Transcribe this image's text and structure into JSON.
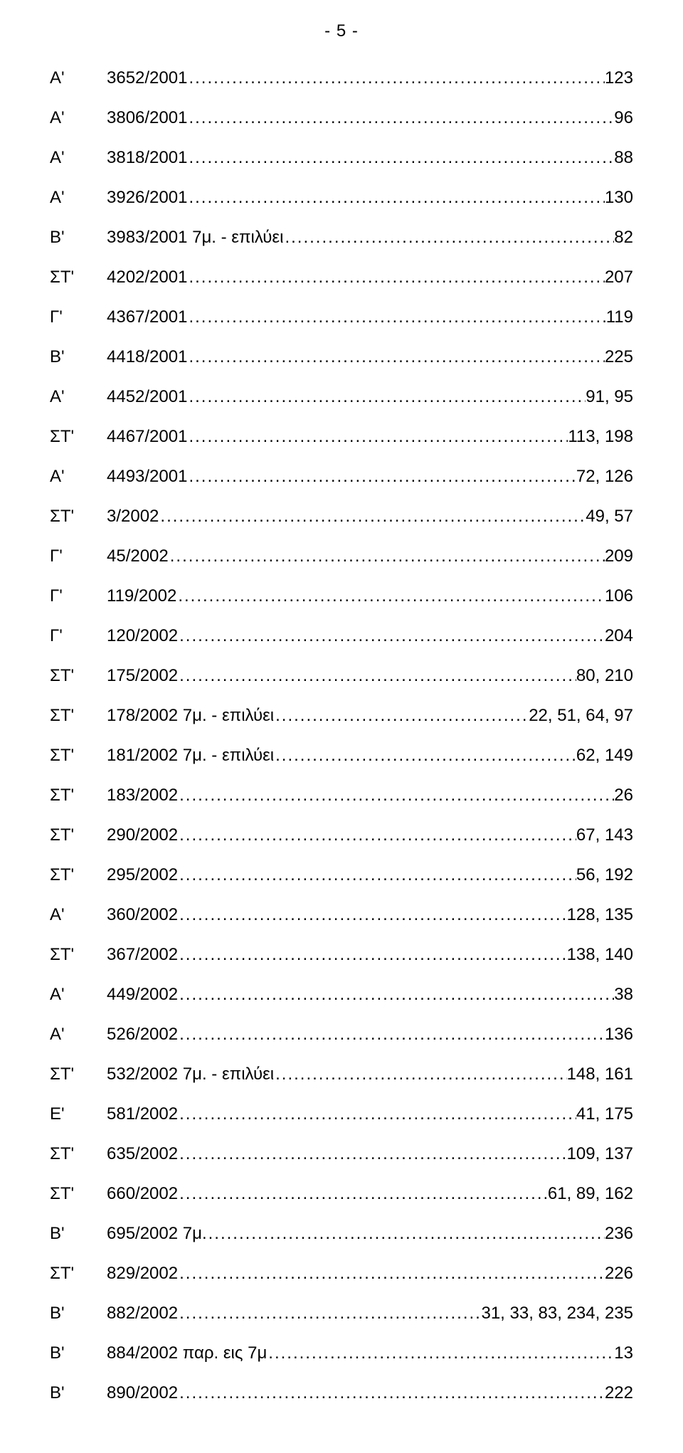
{
  "page_number": "- 5 -",
  "entries": [
    {
      "prefix": "Α'",
      "label": "3652/2001",
      "value": "123"
    },
    {
      "prefix": "Α'",
      "label": "3806/2001",
      "value": "96"
    },
    {
      "prefix": "Α'",
      "label": "3818/2001",
      "value": "88"
    },
    {
      "prefix": "Α'",
      "label": "3926/2001",
      "value": "130"
    },
    {
      "prefix": "Β'",
      "label": "3983/2001 7μ. - επιλύει",
      "value": "82"
    },
    {
      "prefix": "ΣΤ'",
      "label": "4202/2001",
      "value": "207"
    },
    {
      "prefix": "Γ'",
      "label": "4367/2001",
      "value": "119"
    },
    {
      "prefix": "Β'",
      "label": "4418/2001",
      "value": "225"
    },
    {
      "prefix": "Α'",
      "label": "4452/2001",
      "value": "91, 95"
    },
    {
      "prefix": "ΣΤ'",
      "label": "4467/2001",
      "value": "113, 198"
    },
    {
      "prefix": "Α'",
      "label": "4493/2001",
      "value": "72, 126"
    },
    {
      "prefix": "ΣΤ'",
      "label": "3/2002",
      "value": "49, 57"
    },
    {
      "prefix": "Γ'",
      "label": "45/2002",
      "value": "209"
    },
    {
      "prefix": "Γ'",
      "label": "119/2002",
      "value": "106"
    },
    {
      "prefix": "Γ'",
      "label": "120/2002",
      "value": "204"
    },
    {
      "prefix": "ΣΤ'",
      "label": "175/2002",
      "value": "80, 210"
    },
    {
      "prefix": "ΣΤ'",
      "label": "178/2002 7μ. - επιλύει",
      "value": "22, 51, 64, 97"
    },
    {
      "prefix": "ΣΤ'",
      "label": "181/2002 7μ. - επιλύει",
      "value": "62, 149"
    },
    {
      "prefix": "ΣΤ'",
      "label": "183/2002",
      "value": "26"
    },
    {
      "prefix": "ΣΤ'",
      "label": "290/2002",
      "value": "67, 143"
    },
    {
      "prefix": "ΣΤ'",
      "label": "295/2002",
      "value": "56, 192"
    },
    {
      "prefix": "Α'",
      "label": "360/2002",
      "value": "128, 135"
    },
    {
      "prefix": "ΣΤ'",
      "label": "367/2002",
      "value": "138, 140"
    },
    {
      "prefix": "Α'",
      "label": "449/2002",
      "value": "38"
    },
    {
      "prefix": "Α'",
      "label": "526/2002",
      "value": "136"
    },
    {
      "prefix": "ΣΤ'",
      "label": "532/2002 7μ. - επιλύει",
      "value": "148, 161"
    },
    {
      "prefix": "Ε'",
      "label": "581/2002",
      "value": "41, 175"
    },
    {
      "prefix": "ΣΤ'",
      "label": "635/2002",
      "value": "109, 137"
    },
    {
      "prefix": "ΣΤ'",
      "label": "660/2002",
      "value": "61, 89, 162"
    },
    {
      "prefix": "Β'",
      "label": "695/2002 7μ.",
      "value": "236"
    },
    {
      "prefix": "ΣΤ'",
      "label": "829/2002",
      "value": "226"
    },
    {
      "prefix": "Β'",
      "label": "882/2002",
      "value": "31, 33, 83, 234, 235"
    },
    {
      "prefix": "Β'",
      "label": "884/2002 παρ. εις 7μ",
      "value": "13"
    },
    {
      "prefix": "Β'",
      "label": "890/2002",
      "value": "222"
    }
  ]
}
